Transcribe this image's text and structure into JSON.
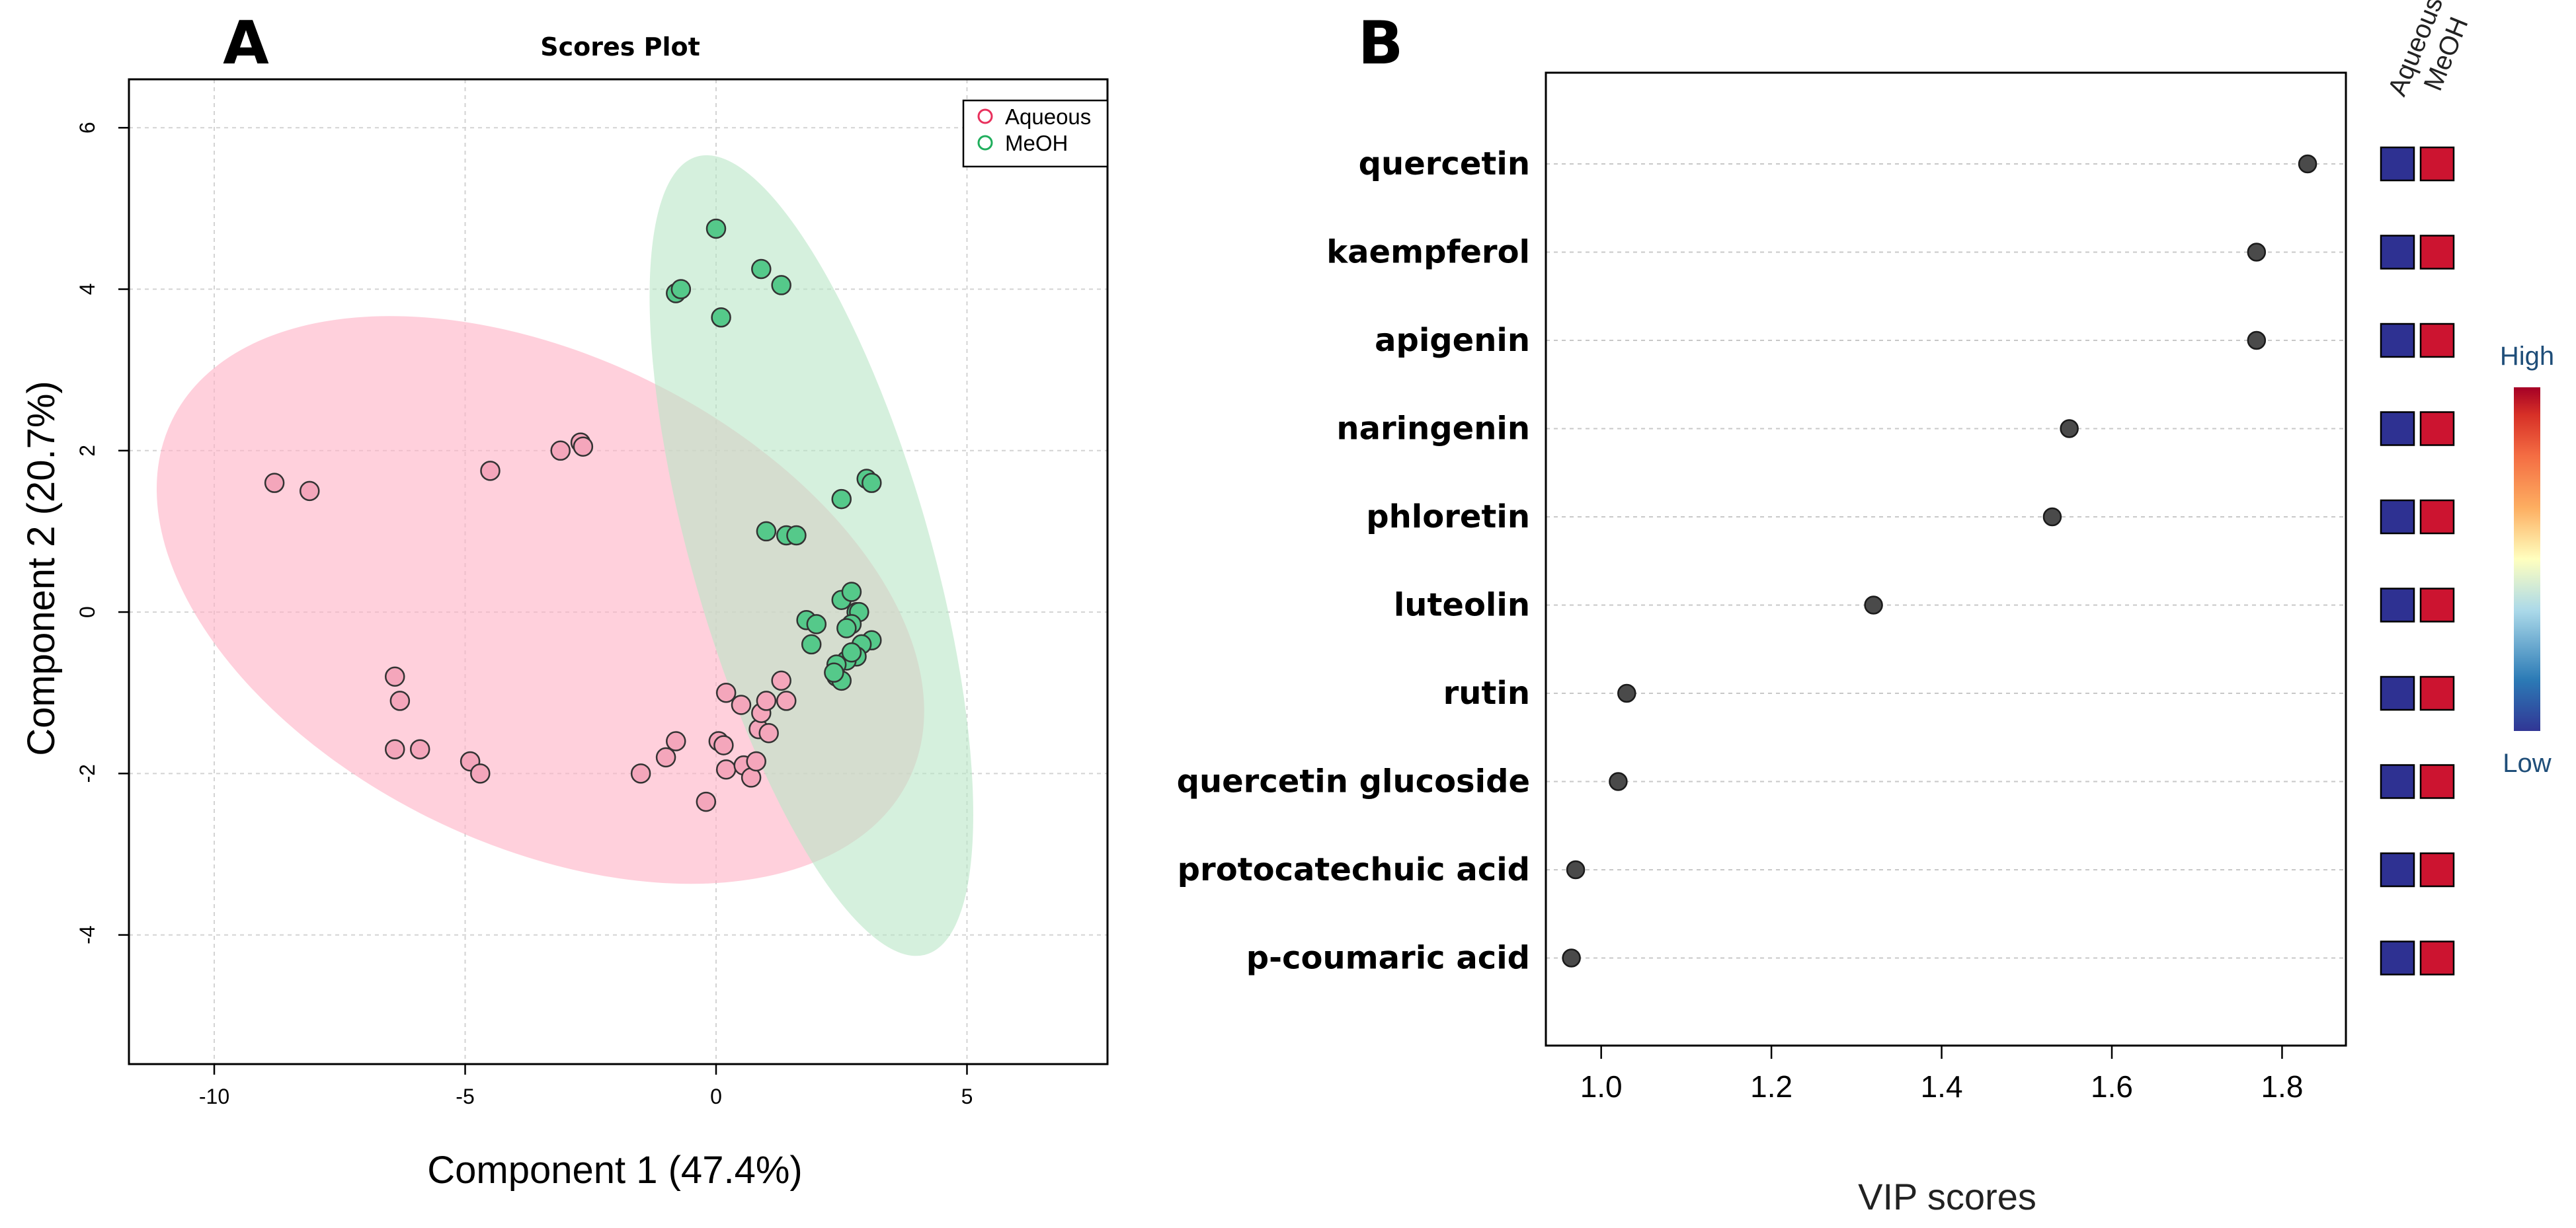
{
  "chart_data": [
    {
      "type": "scatter",
      "panel_label": "A",
      "title": "Scores Plot",
      "xlabel": "Component 1 (47.4%)",
      "ylabel": "Component 2 (20.7%)",
      "xlim": [
        -11.7,
        7.8
      ],
      "ylim": [
        -5.6,
        6.6
      ],
      "xticks": [
        -10,
        -5,
        0,
        5
      ],
      "xtick_labels": [
        "-10",
        "-5",
        "0",
        "5"
      ],
      "yticks": [
        -4,
        -2,
        0,
        2,
        4,
        6
      ],
      "ytick_labels": [
        "-4",
        "-2",
        "0",
        "2",
        "4",
        "6"
      ],
      "grid": true,
      "legend_position": "top-right",
      "series": [
        {
          "name": "Aqueous",
          "color": "#f4a6bb",
          "ellipse_color": "#ffb3c6",
          "points": [
            [
              -8.8,
              1.6
            ],
            [
              -8.1,
              1.5
            ],
            [
              -4.5,
              1.75
            ],
            [
              -3.1,
              2.0
            ],
            [
              -2.7,
              2.1
            ],
            [
              -2.65,
              2.05
            ],
            [
              -6.4,
              -0.8
            ],
            [
              -6.3,
              -1.1
            ],
            [
              -6.4,
              -1.7
            ],
            [
              -5.9,
              -1.7
            ],
            [
              -4.9,
              -1.85
            ],
            [
              -4.7,
              -2.0
            ],
            [
              -1.5,
              -2.0
            ],
            [
              -1.0,
              -1.8
            ],
            [
              -0.8,
              -1.6
            ],
            [
              -0.2,
              -2.35
            ],
            [
              0.05,
              -1.6
            ],
            [
              0.15,
              -1.65
            ],
            [
              0.2,
              -1.0
            ],
            [
              0.2,
              -1.95
            ],
            [
              0.5,
              -1.15
            ],
            [
              0.55,
              -1.9
            ],
            [
              0.7,
              -2.05
            ],
            [
              0.8,
              -1.85
            ],
            [
              0.85,
              -1.45
            ],
            [
              0.9,
              -1.25
            ],
            [
              1.0,
              -1.1
            ],
            [
              1.05,
              -1.5
            ],
            [
              1.3,
              -0.85
            ],
            [
              1.4,
              -1.1
            ]
          ]
        },
        {
          "name": "MeOH",
          "color": "#55c98a",
          "ellipse_color": "#b9e6c6",
          "points": [
            [
              0.0,
              4.75
            ],
            [
              0.9,
              4.25
            ],
            [
              1.3,
              4.05
            ],
            [
              -0.8,
              3.95
            ],
            [
              -0.7,
              4.0
            ],
            [
              0.1,
              3.65
            ],
            [
              3.0,
              1.65
            ],
            [
              3.1,
              1.6
            ],
            [
              2.5,
              1.4
            ],
            [
              1.0,
              1.0
            ],
            [
              1.4,
              0.95
            ],
            [
              1.6,
              0.95
            ],
            [
              2.5,
              0.15
            ],
            [
              2.7,
              0.25
            ],
            [
              2.8,
              0.0
            ],
            [
              2.85,
              0.0
            ],
            [
              1.8,
              -0.1
            ],
            [
              2.0,
              -0.15
            ],
            [
              2.7,
              -0.15
            ],
            [
              2.6,
              -0.2
            ],
            [
              1.9,
              -0.4
            ],
            [
              3.1,
              -0.35
            ],
            [
              2.9,
              -0.4
            ],
            [
              2.8,
              -0.55
            ],
            [
              2.6,
              -0.6
            ],
            [
              2.7,
              -0.5
            ],
            [
              2.4,
              -0.65
            ],
            [
              2.4,
              -0.8
            ],
            [
              2.5,
              -0.85
            ],
            [
              2.35,
              -0.75
            ]
          ]
        }
      ]
    },
    {
      "type": "dot",
      "panel_label": "B",
      "xlabel": "VIP scores",
      "xlim": [
        0.935,
        1.875
      ],
      "xticks": [
        1.0,
        1.2,
        1.4,
        1.6,
        1.8
      ],
      "xtick_labels": [
        "1.0",
        "1.2",
        "1.4",
        "1.6",
        "1.8"
      ],
      "categories": [
        "quercetin",
        "kaempferol",
        "apigenin",
        "naringenin",
        "phloretin",
        "luteolin",
        "rutin",
        "quercetin glucoside",
        "protocatechuic acid",
        "p-coumaric acid"
      ],
      "values": [
        1.83,
        1.77,
        1.77,
        1.55,
        1.53,
        1.32,
        1.03,
        1.02,
        0.97,
        0.965
      ],
      "heatmap": {
        "columns": [
          "Aqueous",
          "MeOH"
        ],
        "colors": [
          "#2e3192",
          "#cc1430"
        ]
      },
      "colorbar": {
        "high_label": "High",
        "low_label": "Low",
        "stops": [
          "#313695",
          "#2c7bb6",
          "#abd9e9",
          "#ffffbf",
          "#fdae61",
          "#f46d43",
          "#d73027",
          "#a50026"
        ]
      }
    }
  ]
}
